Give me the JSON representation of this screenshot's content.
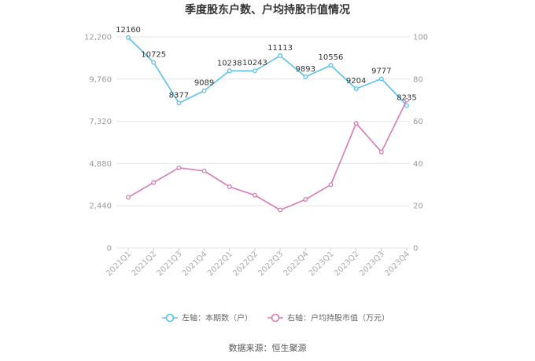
{
  "chart_data": {
    "type": "line",
    "title": "季度股东户数、户均持股市值情况",
    "categories": [
      "2021Q1",
      "2021Q2",
      "2021Q3",
      "2021Q4",
      "2022Q1",
      "2022Q2",
      "2022Q3",
      "2022Q4",
      "2023Q1",
      "2023Q2",
      "2023Q3",
      "2023Q4"
    ],
    "left_axis": {
      "min": 0,
      "max": 12200,
      "ticks": [
        0,
        2440,
        4880,
        7320,
        9760,
        12200
      ],
      "tick_labels": [
        "0",
        "2,440",
        "4,880",
        "7,320",
        "9,760",
        "12,200"
      ]
    },
    "right_axis": {
      "min": 0,
      "max": 100,
      "ticks": [
        0,
        20,
        40,
        60,
        80,
        100
      ],
      "tick_labels": [
        "0",
        "20",
        "40",
        "60",
        "80",
        "100"
      ]
    },
    "series": [
      {
        "name": "左轴：本期数（户）",
        "axis": "left",
        "color": "#5bc0eb",
        "values": [
          12160,
          10725,
          8377,
          9089,
          10238,
          10243,
          11113,
          9893,
          10556,
          9204,
          9777,
          8235
        ],
        "labels": [
          "12160",
          "10725",
          "8377",
          "9089",
          "10238",
          "10243",
          "11113",
          "9893",
          "10556",
          "9204",
          "9777",
          "8235"
        ]
      },
      {
        "name": "右轴：户均持股市值（万元）",
        "axis": "right",
        "color": "#d77ab5",
        "values": [
          24.0,
          31.0,
          38.0,
          36.5,
          29.0,
          25.0,
          18.0,
          23.0,
          30.0,
          59.0,
          45.5,
          70.0
        ]
      }
    ],
    "grid": true,
    "legend_position": "bottom"
  },
  "source": "数据来源：恒生聚源"
}
